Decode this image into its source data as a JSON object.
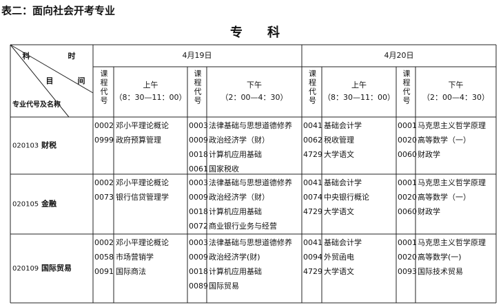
{
  "title": "表二：面向社会开考专业",
  "heading": "专　　科",
  "table": {
    "corner": {
      "top_left": "科",
      "top_right": "时",
      "middle_left": "目",
      "middle_right": "间",
      "bottom": "专业代号及名称"
    },
    "dates": [
      "4月19日",
      "4月20日"
    ],
    "sessions": [
      {
        "code_header": "课程代号",
        "label": "上午",
        "time": "（8：30—11：00）"
      },
      {
        "code_header": "课程代号",
        "label": "下午",
        "time": "（2：00—4：30）"
      },
      {
        "code_header": "课程代号",
        "label": "上午",
        "time": "（8：30—11：00）"
      },
      {
        "code_header": "课程代号",
        "label": "下午",
        "time": "（2：00—4：30）"
      }
    ],
    "rows": [
      {
        "code": "020103",
        "name": "财税",
        "cells": [
          [
            {
              "code": "0002",
              "name": "邓小平理论概论"
            },
            {
              "code": "0999",
              "name": "政府预算管理"
            }
          ],
          [
            {
              "code": "0003",
              "name": "法律基础与思想道德修养"
            },
            {
              "code": "0009",
              "name": "政治经济学（财）"
            },
            {
              "code": "0018",
              "name": "计算机应用基础"
            },
            {
              "code": "0061",
              "name": "国家税收"
            }
          ],
          [
            {
              "code": "0041",
              "name": "基础会计学"
            },
            {
              "code": "0062",
              "name": "税收管理"
            },
            {
              "code": "4729",
              "name": "大学语文"
            }
          ],
          [
            {
              "code": "0001",
              "name": "马克思主义哲学原理"
            },
            {
              "code": "0020",
              "name": "高等数学（一）"
            },
            {
              "code": "0060",
              "name": "财政学"
            }
          ]
        ]
      },
      {
        "code": "020105",
        "name": "金融",
        "cells": [
          [
            {
              "code": "0002",
              "name": "邓小平理论概论"
            },
            {
              "code": "0073",
              "name": "银行信贷管理学"
            }
          ],
          [
            {
              "code": "0003",
              "name": "法律基础与思想道德修养"
            },
            {
              "code": "0009",
              "name": "政治经济学（财）"
            },
            {
              "code": "0018",
              "name": "计算机应用基础"
            },
            {
              "code": "0072",
              "name": "商业银行业务与经营"
            }
          ],
          [
            {
              "code": "0041",
              "name": "基础会计学"
            },
            {
              "code": "0074",
              "name": "中央银行概论"
            },
            {
              "code": "4729",
              "name": "大学语文"
            }
          ],
          [
            {
              "code": "0001",
              "name": "马克思主义哲学原理"
            },
            {
              "code": "0020",
              "name": "高等数学（一）"
            },
            {
              "code": "0060",
              "name": "财政学"
            }
          ]
        ]
      },
      {
        "code": "020109",
        "name": "国际贸易",
        "cells": [
          [
            {
              "code": "0002",
              "name": "邓小平理论概论"
            },
            {
              "code": "0058",
              "name": "市场营销学"
            },
            {
              "code": "0091",
              "name": "国际商法"
            }
          ],
          [
            {
              "code": "0003",
              "name": "法律基础与思想道德修养"
            },
            {
              "code": "0009",
              "name": "政治经济学(财)"
            },
            {
              "code": "0018",
              "name": "计算机应用基础"
            },
            {
              "code": "0089",
              "name": "国际贸易"
            }
          ],
          [
            {
              "code": "0041",
              "name": "基础会计学"
            },
            {
              "code": "0094",
              "name": "外贸函电"
            },
            {
              "code": "4729",
              "name": "大学语文"
            }
          ],
          [
            {
              "code": "0001",
              "name": "马克思主义哲学原理"
            },
            {
              "code": "0020",
              "name": "高等数学(一)"
            },
            {
              "code": "0093",
              "name": "国际技术贸易"
            }
          ]
        ]
      }
    ]
  }
}
